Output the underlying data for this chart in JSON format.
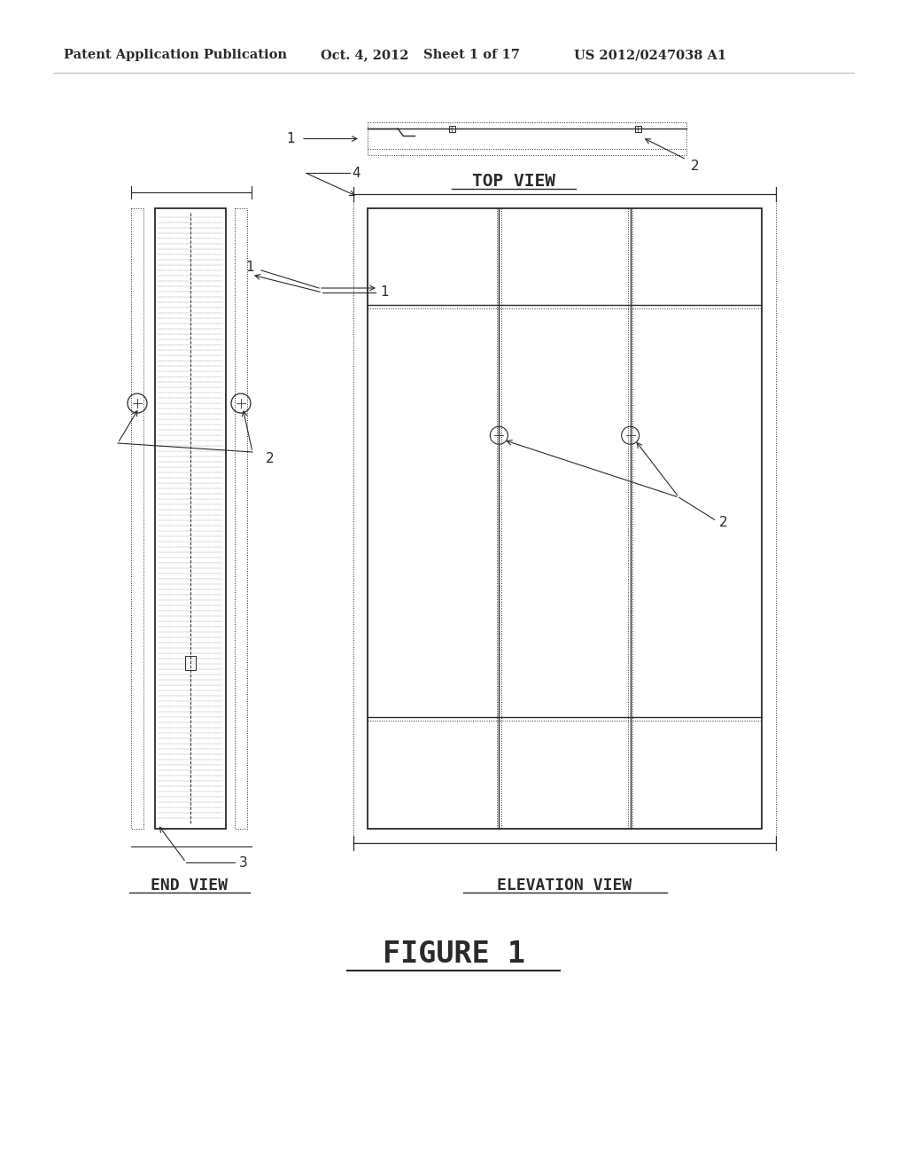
{
  "bg_color": "#ffffff",
  "text_color": "#1a1a1a",
  "header_text": "Patent Application Publication",
  "header_date": "Oct. 4, 2012",
  "header_sheet": "Sheet 1 of 17",
  "header_patent": "US 2012/0247038 A1",
  "figure_label": "FIGURE 1",
  "top_view_label": "TOP VIEW",
  "end_view_label": "END VIEW",
  "elevation_label": "ELEVATION VIEW",
  "lc": "#2a2a2a"
}
